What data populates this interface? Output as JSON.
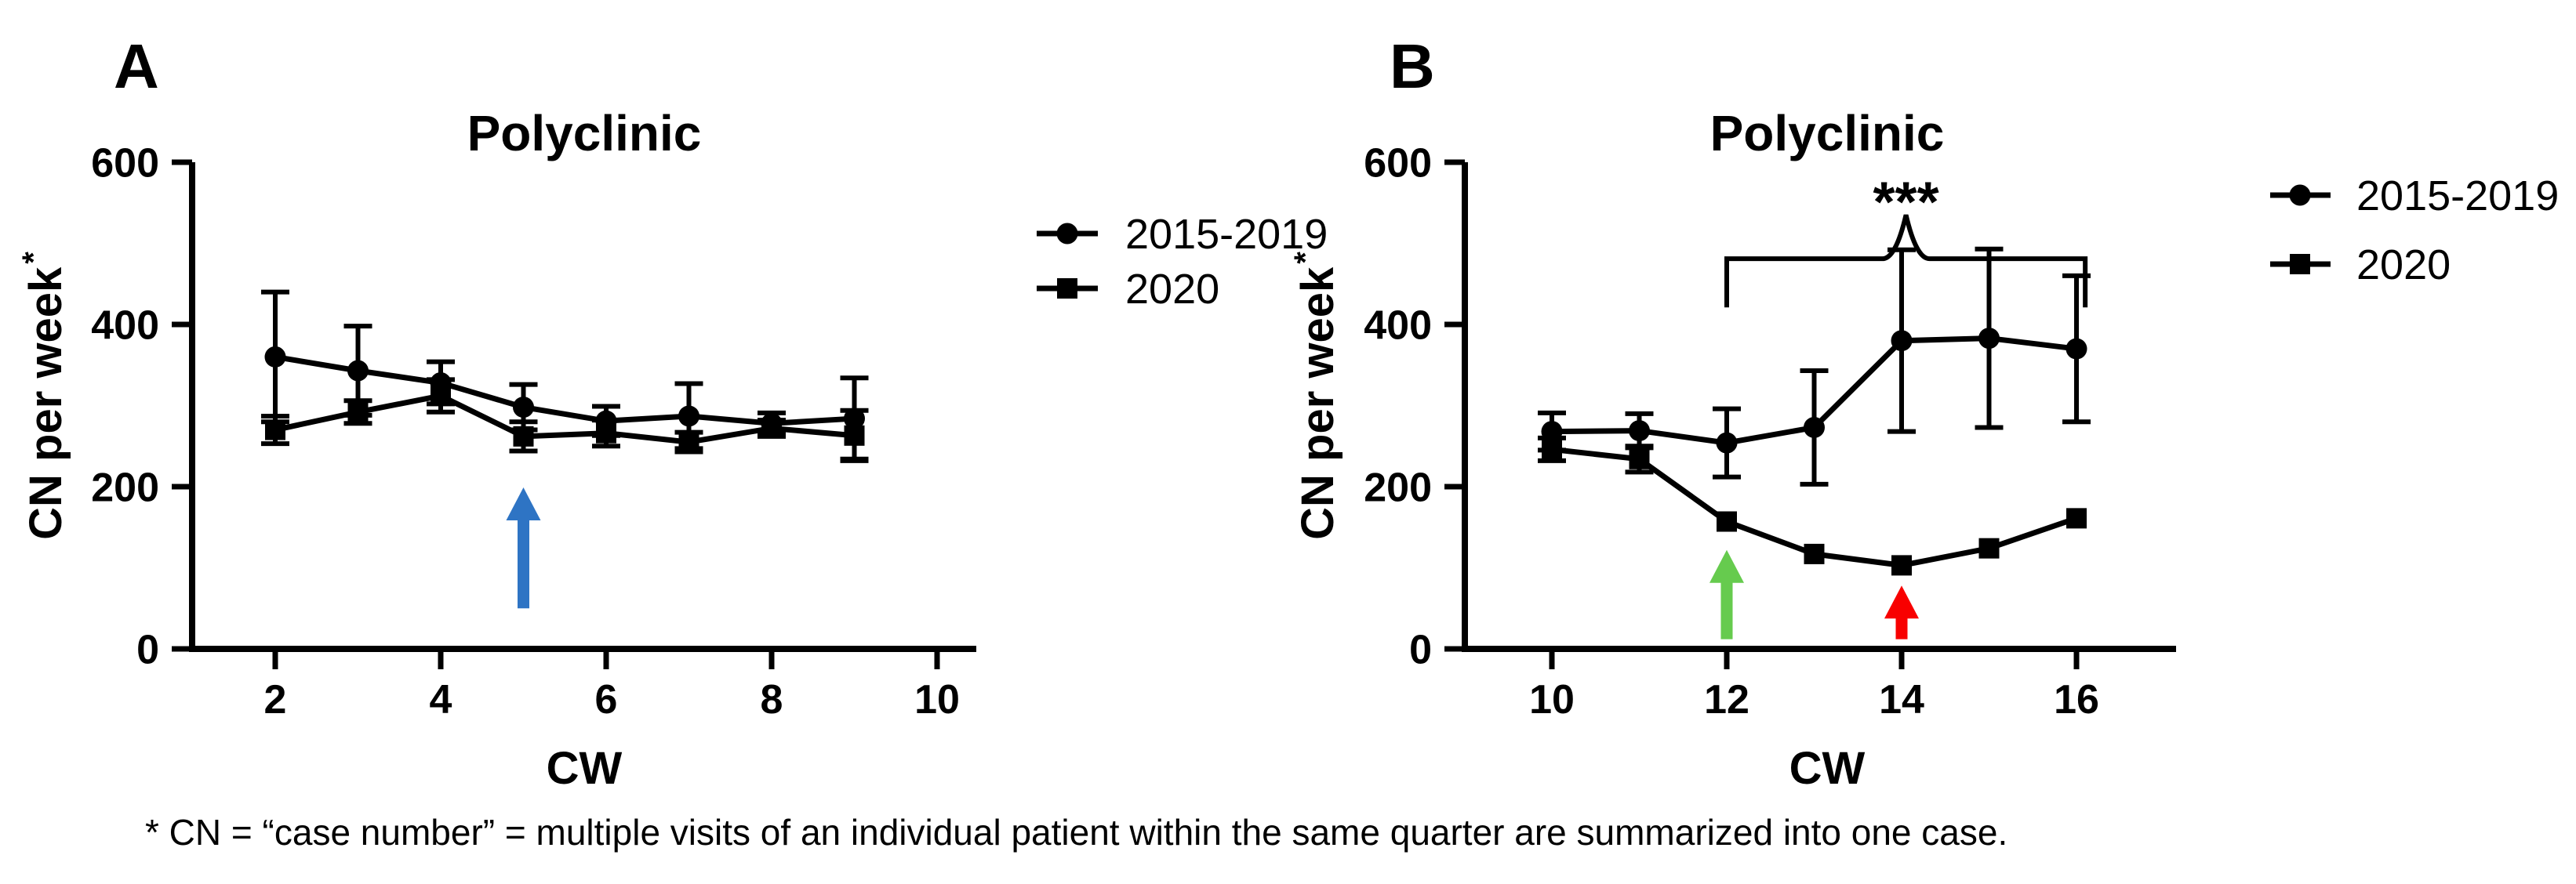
{
  "figure": {
    "panels": [
      {
        "label": "A"
      },
      {
        "label": "B"
      }
    ],
    "footnote": "* CN = “case number” = multiple visits of an individual patient within the same quarter are summarized into one case."
  },
  "legend": {
    "entries": [
      {
        "label": "2015-2019",
        "marker": "circle"
      },
      {
        "label": "2020",
        "marker": "square"
      }
    ]
  },
  "colors": {
    "series": "#000000",
    "arrow_blue": "#2E74C4",
    "arrow_green": "#66CB4E",
    "arrow_red": "#F80000"
  },
  "chart_data": [
    {
      "type": "line",
      "panel": "A",
      "title": "Polyclinic",
      "xlabel": "CW",
      "ylabel": "CN per week",
      "ylabel_superscript": "*",
      "ylim": [
        0,
        600
      ],
      "yticks": [
        0,
        200,
        400,
        600
      ],
      "xticks": [
        2,
        4,
        6,
        8,
        10
      ],
      "x": [
        2,
        3,
        4,
        5,
        6,
        7,
        8,
        9
      ],
      "grid": false,
      "series": [
        {
          "name": "2015-2019",
          "marker": "circle",
          "values": [
            360,
            343,
            328,
            298,
            281,
            287,
            278,
            284
          ],
          "errors": [
            80,
            55,
            26,
            28,
            18,
            40,
            13,
            50
          ]
        },
        {
          "name": "2020",
          "marker": "square",
          "values": [
            270,
            292,
            312,
            262,
            266,
            255,
            272,
            263
          ],
          "errors": [
            17,
            14,
            20,
            18,
            16,
            12,
            10,
            31
          ]
        }
      ],
      "annotations": {
        "arrows": [
          {
            "name": "blue-arrow",
            "cw": 5,
            "color": "#2E74C4",
            "tip_value": 199,
            "tail_value": 50
          }
        ]
      }
    },
    {
      "type": "line",
      "panel": "B",
      "title": "Polyclinic",
      "xlabel": "CW",
      "ylabel": "CN per week",
      "ylabel_superscript": "*",
      "ylim": [
        0,
        600
      ],
      "yticks": [
        0,
        200,
        400,
        600
      ],
      "xticks": [
        10,
        12,
        14,
        16
      ],
      "x": [
        10,
        11,
        12,
        13,
        14,
        15,
        16
      ],
      "grid": false,
      "series": [
        {
          "name": "2015-2019",
          "marker": "circle",
          "values": [
            268,
            269,
            254,
            273,
            380,
            383,
            370
          ],
          "errors": [
            23,
            21,
            42,
            70,
            112,
            110,
            90
          ]
        },
        {
          "name": "2020",
          "marker": "square",
          "values": [
            246,
            234,
            157,
            117,
            103,
            124,
            161
          ],
          "errors": [
            14,
            16,
            0,
            0,
            0,
            0,
            0
          ]
        }
      ],
      "annotations": {
        "arrows": [
          {
            "name": "green-arrow",
            "cw": 12,
            "color": "#66CB4E",
            "tip_value": 122,
            "tail_value": 12
          },
          {
            "name": "red-arrow",
            "cw": 14,
            "color": "#F80000",
            "tip_value": 78,
            "tail_value": 12
          }
        ],
        "significance": {
          "label": "***",
          "from_cw": 12,
          "to_cw": 16.1,
          "bar_value": 481,
          "end_value": 421,
          "peak_cw": 14.05,
          "peak_value": 535,
          "label_cw": 14.05,
          "label_value": 527
        }
      }
    }
  ]
}
